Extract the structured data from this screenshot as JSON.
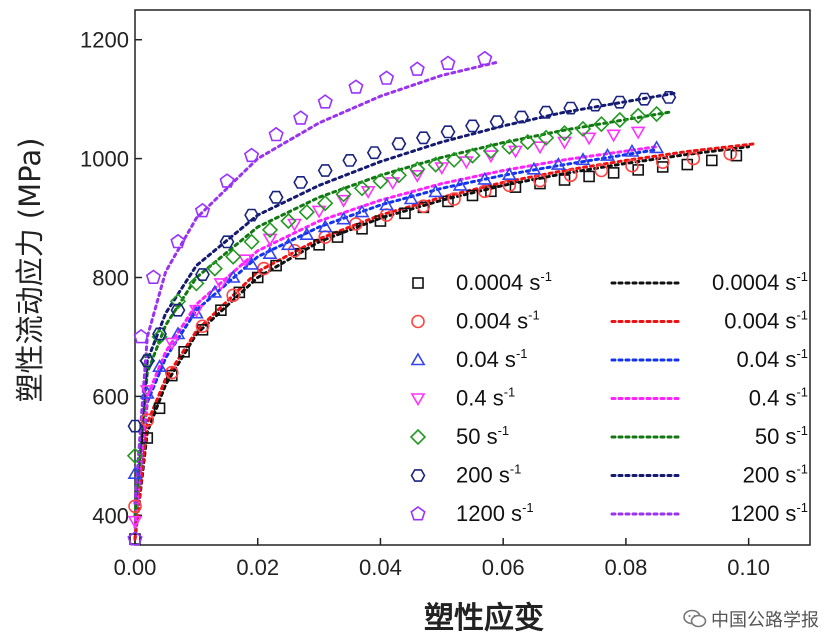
{
  "chart_data": {
    "type": "scatter",
    "xlabel": "塑性应变",
    "ylabel": "塑性流动应力 (MPa)",
    "xlim": [
      0,
      0.11
    ],
    "ylim": [
      350,
      1250
    ],
    "x_ticks": [
      "0.00",
      "0.02",
      "0.04",
      "0.06",
      "0.08",
      "0.10"
    ],
    "y_ticks": [
      "400",
      "600",
      "800",
      "1000",
      "1200"
    ],
    "legend_position": "bottom-right",
    "series": [
      {
        "name": "0.0004",
        "unit": "s",
        "exp": "-1",
        "color": "#111111",
        "marker": "square",
        "x": [
          0.0,
          0.002,
          0.004,
          0.006,
          0.008,
          0.011,
          0.014,
          0.017,
          0.02,
          0.023,
          0.027,
          0.03,
          0.033,
          0.037,
          0.04,
          0.044,
          0.047,
          0.051,
          0.055,
          0.058,
          0.062,
          0.066,
          0.07,
          0.074,
          0.078,
          0.082,
          0.086,
          0.09,
          0.094,
          0.098
        ],
        "y": [
          360,
          530,
          580,
          635,
          675,
          712,
          745,
          775,
          800,
          820,
          840,
          855,
          868,
          882,
          895,
          908,
          918,
          928,
          938,
          945,
          952,
          958,
          964,
          970,
          976,
          981,
          986,
          990,
          997,
          1005
        ]
      },
      {
        "name": "0.004",
        "unit": "s",
        "exp": "-1",
        "color": "#ff4444",
        "marker": "circle",
        "x": [
          0.0,
          0.002,
          0.006,
          0.011,
          0.016,
          0.021,
          0.026,
          0.031,
          0.036,
          0.041,
          0.047,
          0.052,
          0.057,
          0.061,
          0.066,
          0.071,
          0.076,
          0.081,
          0.086,
          0.091,
          0.097
        ],
        "y": [
          415,
          560,
          640,
          718,
          770,
          815,
          845,
          868,
          890,
          905,
          920,
          932,
          945,
          955,
          963,
          972,
          980,
          988,
          994,
          1000,
          1008
        ]
      },
      {
        "name": "0.04",
        "unit": "s",
        "exp": "-1",
        "color": "#3344ee",
        "marker": "triangle-up",
        "x": [
          0.0,
          0.002,
          0.004,
          0.007,
          0.01,
          0.013,
          0.016,
          0.019,
          0.022,
          0.025,
          0.028,
          0.031,
          0.034,
          0.037,
          0.041,
          0.045,
          0.049,
          0.053,
          0.057,
          0.061,
          0.065,
          0.069,
          0.073,
          0.077,
          0.081,
          0.085
        ],
        "y": [
          470,
          605,
          650,
          705,
          740,
          775,
          800,
          822,
          840,
          855,
          872,
          885,
          898,
          910,
          922,
          932,
          944,
          955,
          965,
          973,
          982,
          990,
          998,
          1005,
          1012,
          1018
        ]
      },
      {
        "name": "0.4",
        "unit": "s",
        "exp": "-1",
        "color": "#ff33ff",
        "marker": "triangle-down",
        "x": [
          0.0,
          0.002,
          0.006,
          0.01,
          0.014,
          0.018,
          0.022,
          0.026,
          0.03,
          0.034,
          0.038,
          0.042,
          0.046,
          0.05,
          0.054,
          0.058,
          0.062,
          0.066,
          0.07,
          0.074,
          0.078,
          0.082
        ],
        "y": [
          390,
          610,
          690,
          745,
          790,
          830,
          865,
          890,
          912,
          930,
          945,
          960,
          972,
          985,
          995,
          1005,
          1013,
          1020,
          1028,
          1035,
          1040,
          1045
        ]
      },
      {
        "name": "50",
        "unit": "s",
        "exp": "-1",
        "color": "#229922",
        "marker": "diamond",
        "x": [
          0.0,
          0.002,
          0.004,
          0.007,
          0.01,
          0.013,
          0.016,
          0.019,
          0.022,
          0.025,
          0.028,
          0.031,
          0.034,
          0.037,
          0.04,
          0.043,
          0.046,
          0.049,
          0.052,
          0.055,
          0.058,
          0.061,
          0.064,
          0.067,
          0.07,
          0.073,
          0.076,
          0.079,
          0.082,
          0.085
        ],
        "y": [
          500,
          660,
          700,
          760,
          790,
          815,
          835,
          860,
          880,
          895,
          910,
          925,
          940,
          950,
          962,
          972,
          982,
          990,
          998,
          1005,
          1013,
          1020,
          1028,
          1035,
          1043,
          1050,
          1058,
          1065,
          1072,
          1075
        ]
      },
      {
        "name": "200",
        "unit": "s",
        "exp": "-1",
        "color": "#1a237e",
        "marker": "hexagon",
        "x": [
          0.0,
          0.002,
          0.004,
          0.007,
          0.011,
          0.015,
          0.019,
          0.023,
          0.027,
          0.031,
          0.035,
          0.039,
          0.043,
          0.047,
          0.051,
          0.055,
          0.059,
          0.063,
          0.067,
          0.071,
          0.075,
          0.079,
          0.083,
          0.087
        ],
        "y": [
          550,
          660,
          705,
          745,
          805,
          860,
          905,
          935,
          960,
          980,
          997,
          1010,
          1025,
          1035,
          1045,
          1055,
          1062,
          1070,
          1078,
          1085,
          1090,
          1095,
          1100,
          1103
        ]
      },
      {
        "name": "1200",
        "unit": "s",
        "exp": "-1",
        "color": "#9933ff",
        "marker": "pentagon",
        "x": [
          0.0,
          0.001,
          0.003,
          0.007,
          0.011,
          0.015,
          0.019,
          0.023,
          0.027,
          0.031,
          0.036,
          0.041,
          0.046,
          0.051,
          0.057
        ],
        "y": [
          360,
          700,
          800,
          860,
          912,
          962,
          1005,
          1040,
          1068,
          1095,
          1120,
          1135,
          1150,
          1160,
          1168
        ]
      }
    ],
    "fits": [
      {
        "name": "0.0004",
        "unit": "s",
        "exp": "-1",
        "color": "#111111",
        "xmax": 0.1,
        "x": [
          0.0,
          0.002,
          0.005,
          0.01,
          0.02,
          0.03,
          0.04,
          0.05,
          0.06,
          0.07,
          0.08,
          0.09,
          0.1
        ],
        "y": [
          360,
          540,
          620,
          705,
          800,
          860,
          900,
          930,
          955,
          975,
          992,
          1007,
          1020
        ]
      },
      {
        "name": "0.004",
        "unit": "s",
        "exp": "-1",
        "color": "#ee1111",
        "xmax": 0.101,
        "x": [
          0.0,
          0.002,
          0.005,
          0.01,
          0.02,
          0.03,
          0.04,
          0.05,
          0.06,
          0.07,
          0.08,
          0.09,
          0.101
        ],
        "y": [
          360,
          555,
          630,
          710,
          810,
          865,
          905,
          935,
          960,
          980,
          997,
          1012,
          1025
        ]
      },
      {
        "name": "0.04",
        "unit": "s",
        "exp": "-1",
        "color": "#1133ee",
        "xmax": 0.085,
        "x": [
          0.0,
          0.002,
          0.005,
          0.01,
          0.02,
          0.03,
          0.04,
          0.05,
          0.06,
          0.07,
          0.085
        ],
        "y": [
          380,
          590,
          665,
          745,
          835,
          885,
          922,
          950,
          972,
          990,
          1015
        ]
      },
      {
        "name": "0.4",
        "unit": "s",
        "exp": "-1",
        "color": "#ff22ff",
        "xmax": 0.085,
        "x": [
          0.0,
          0.002,
          0.005,
          0.01,
          0.02,
          0.03,
          0.04,
          0.05,
          0.06,
          0.07,
          0.085
        ],
        "y": [
          380,
          600,
          675,
          755,
          845,
          895,
          930,
          958,
          980,
          998,
          1020
        ]
      },
      {
        "name": "50",
        "unit": "s",
        "exp": "-1",
        "color": "#117711",
        "xmax": 0.087,
        "x": [
          0.0,
          0.002,
          0.005,
          0.01,
          0.02,
          0.03,
          0.04,
          0.05,
          0.06,
          0.07,
          0.087
        ],
        "y": [
          400,
          640,
          720,
          800,
          885,
          935,
          972,
          1002,
          1027,
          1048,
          1078
        ]
      },
      {
        "name": "200",
        "unit": "s",
        "exp": "-1",
        "color": "#141a70",
        "xmax": 0.088,
        "x": [
          0.0,
          0.002,
          0.005,
          0.01,
          0.02,
          0.03,
          0.04,
          0.05,
          0.06,
          0.07,
          0.088
        ],
        "y": [
          420,
          660,
          740,
          820,
          905,
          955,
          995,
          1028,
          1055,
          1078,
          1110
        ]
      },
      {
        "name": "1200",
        "unit": "s",
        "exp": "-1",
        "color": "#9933ee",
        "xmax": 0.059,
        "x": [
          0.0,
          0.002,
          0.005,
          0.01,
          0.02,
          0.03,
          0.04,
          0.05,
          0.059
        ],
        "y": [
          420,
          700,
          810,
          900,
          1000,
          1060,
          1105,
          1140,
          1162
        ]
      }
    ]
  },
  "watermark": {
    "text": "中国公路学报",
    "icon": "wechat-icon"
  }
}
